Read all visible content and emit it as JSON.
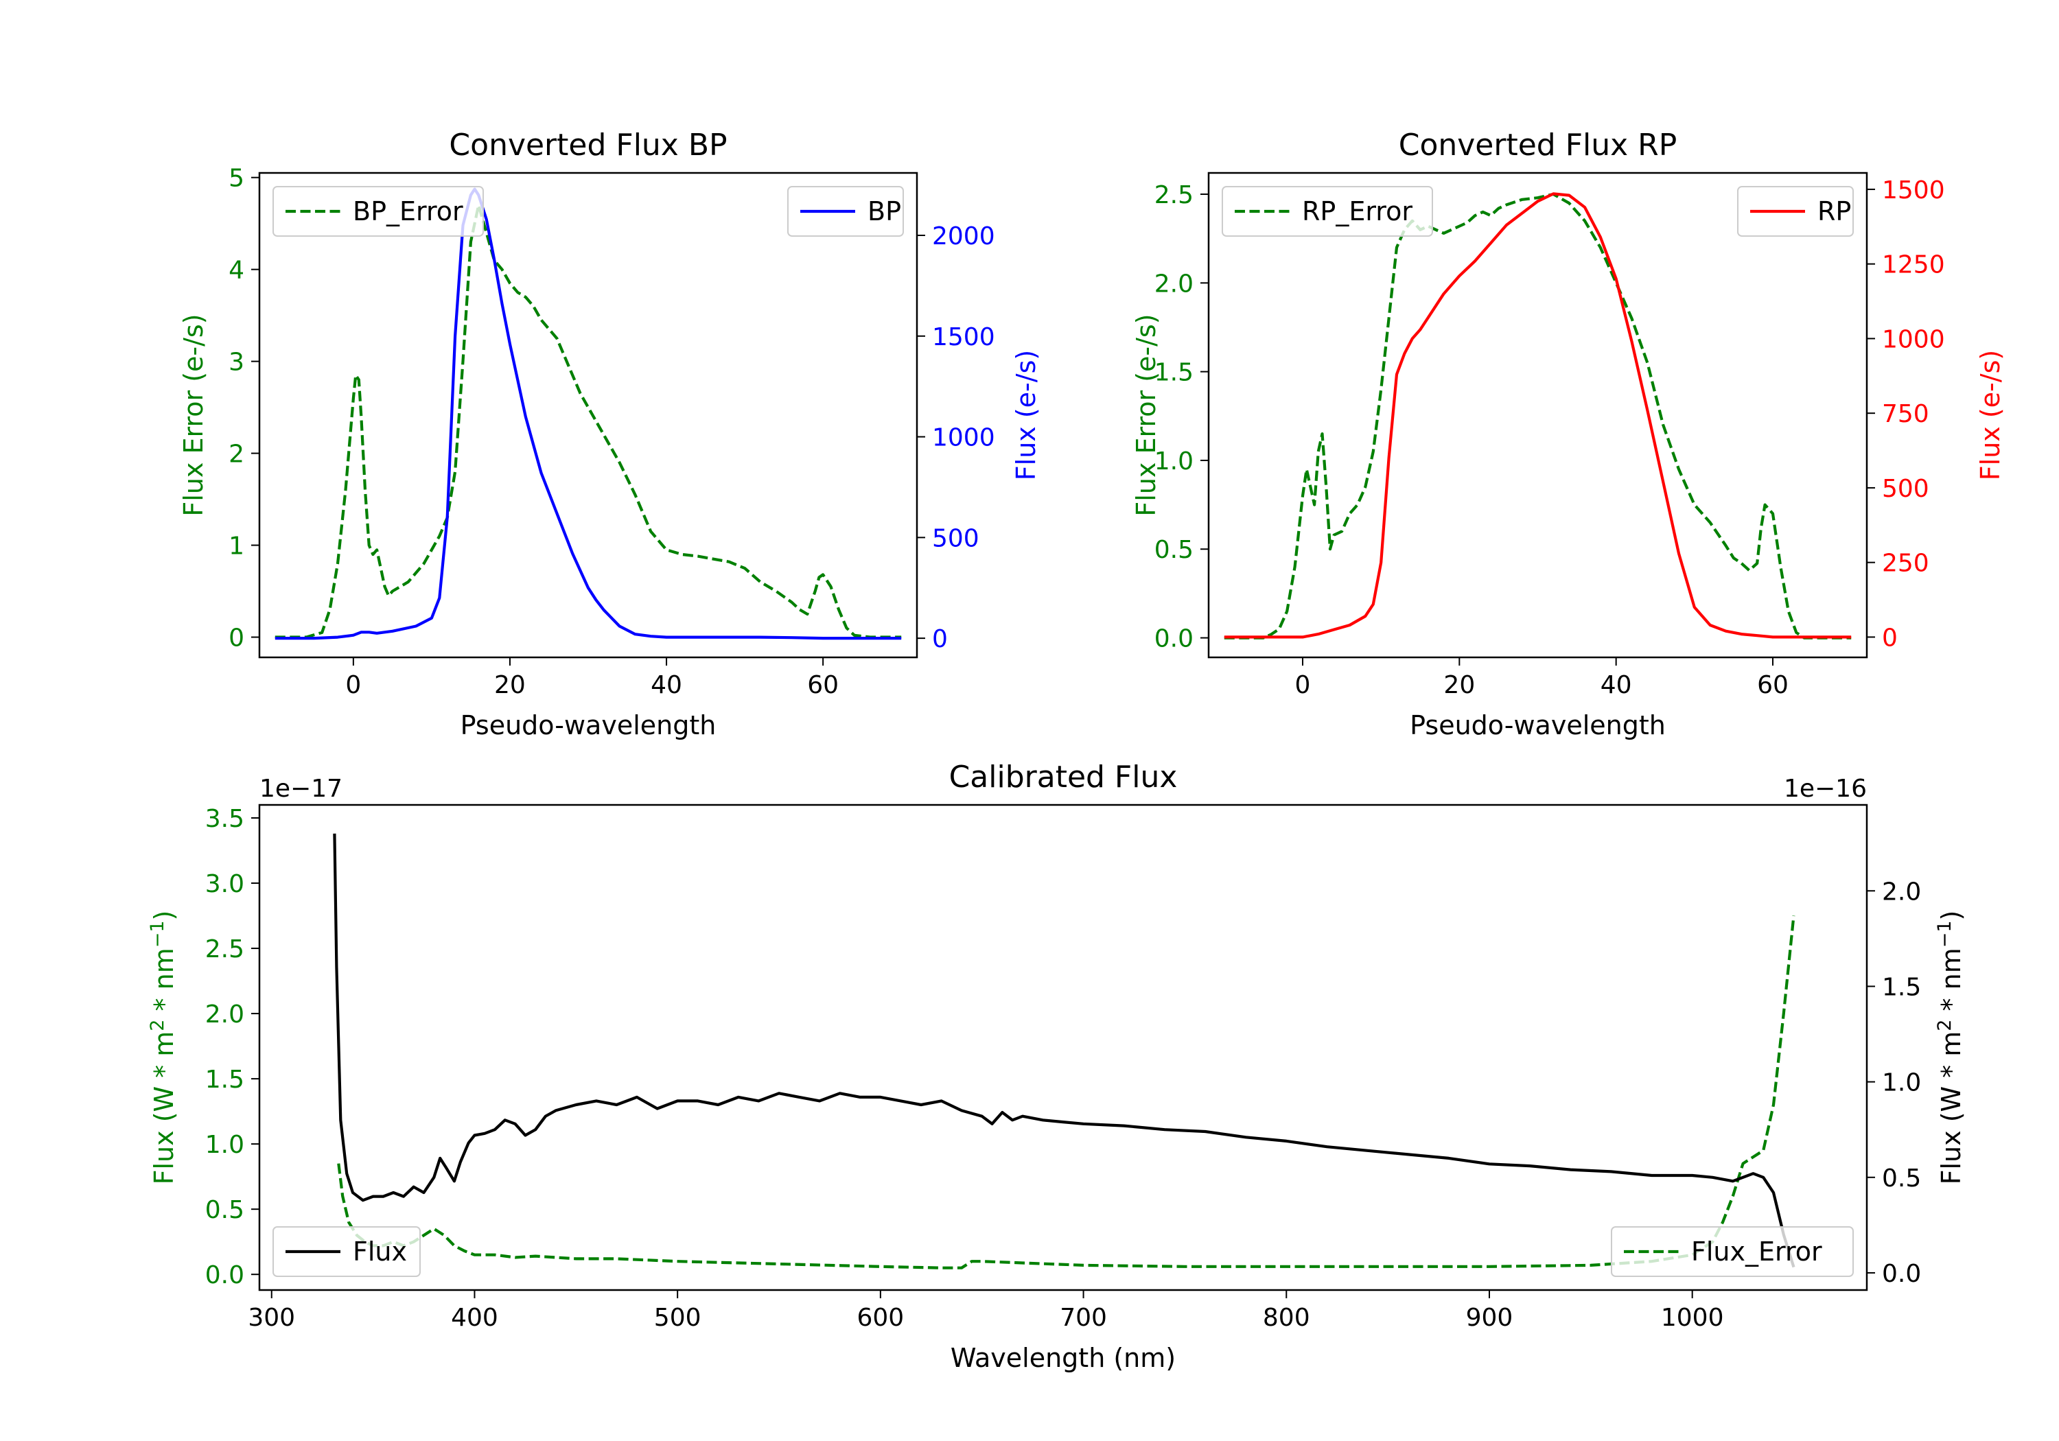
{
  "chart_data": [
    {
      "id": "bp",
      "type": "line",
      "title": "Converted Flux BP",
      "xlabel": "Pseudo-wavelength",
      "xlim": [
        -12,
        72
      ],
      "xticks": [
        0,
        20,
        40,
        60
      ],
      "left_axis": {
        "label": "Flux Error (e-/s)",
        "color": "#008000",
        "ylim": [
          -0.22,
          5.05
        ],
        "ticks": [
          0,
          1,
          2,
          3,
          4,
          5
        ],
        "tick_labels": [
          "0",
          "1",
          "2",
          "3",
          "4",
          "5"
        ]
      },
      "right_axis": {
        "label": "Flux (e-/s)",
        "color": "#0000ff",
        "ylim": [
          -95,
          2310
        ],
        "ticks": [
          0,
          500,
          1000,
          1500,
          2000
        ],
        "tick_labels": [
          "0",
          "500",
          "1000",
          "1500",
          "2000"
        ]
      },
      "series": [
        {
          "name": "BP_Error",
          "axis": "left",
          "style": "dashed",
          "color": "#008000",
          "x": [
            -10,
            -6,
            -4,
            -3,
            -2,
            -1,
            0,
            0.3,
            0.7,
            1,
            1.5,
            2,
            2.5,
            3,
            3.5,
            4,
            4.5,
            5,
            6,
            7,
            8,
            9,
            10,
            11,
            12,
            13,
            14,
            15,
            16,
            17,
            18,
            19,
            20,
            21,
            22,
            23,
            24,
            25,
            26,
            27,
            28,
            29,
            30,
            32,
            34,
            36,
            38,
            40,
            42,
            44,
            46,
            48,
            50,
            52,
            54,
            56,
            57,
            58,
            59,
            59.5,
            60,
            61,
            62,
            63,
            64,
            66,
            70
          ],
          "y": [
            0,
            0,
            0.05,
            0.3,
            0.8,
            1.6,
            2.6,
            2.85,
            2.8,
            2.4,
            1.6,
            1.0,
            0.9,
            0.95,
            0.75,
            0.55,
            0.45,
            0.5,
            0.55,
            0.6,
            0.7,
            0.8,
            0.95,
            1.1,
            1.3,
            1.8,
            3.0,
            4.3,
            4.7,
            4.4,
            4.1,
            4.0,
            3.85,
            3.75,
            3.7,
            3.6,
            3.45,
            3.35,
            3.25,
            3.05,
            2.85,
            2.65,
            2.5,
            2.2,
            1.9,
            1.55,
            1.15,
            0.95,
            0.9,
            0.88,
            0.85,
            0.82,
            0.75,
            0.6,
            0.5,
            0.38,
            0.3,
            0.25,
            0.5,
            0.65,
            0.68,
            0.55,
            0.3,
            0.1,
            0.02,
            0,
            0
          ]
        },
        {
          "name": "BP",
          "axis": "right",
          "style": "solid",
          "color": "#0000ff",
          "x": [
            -10,
            -5,
            -2,
            0,
            1,
            2,
            3,
            5,
            8,
            10,
            11,
            12,
            13,
            14,
            15,
            15.5,
            16,
            17,
            18,
            19,
            20,
            22,
            24,
            26,
            28,
            30,
            31,
            32,
            34,
            36,
            38,
            40,
            44,
            48,
            52,
            56,
            60,
            64,
            70
          ],
          "y": [
            0,
            0,
            5,
            15,
            30,
            30,
            25,
            35,
            60,
            100,
            200,
            600,
            1500,
            2050,
            2200,
            2230,
            2200,
            2080,
            1880,
            1660,
            1460,
            1100,
            820,
            620,
            420,
            250,
            190,
            140,
            60,
            20,
            10,
            5,
            5,
            5,
            5,
            3,
            0,
            0,
            0
          ]
        }
      ],
      "legend": [
        {
          "label": "BP_Error",
          "position": "upper-left"
        },
        {
          "label": "BP",
          "position": "upper-right"
        }
      ]
    },
    {
      "id": "rp",
      "type": "line",
      "title": "Converted Flux RP",
      "xlabel": "Pseudo-wavelength",
      "xlim": [
        -12,
        72
      ],
      "xticks": [
        0,
        20,
        40,
        60
      ],
      "left_axis": {
        "label": "Flux Error (e-/s)",
        "color": "#008000",
        "ylim": [
          -0.11,
          2.62
        ],
        "ticks": [
          0,
          0.5,
          1.0,
          1.5,
          2.0,
          2.5
        ],
        "tick_labels": [
          "0.0",
          "0.5",
          "1.0",
          "1.5",
          "2.0",
          "2.5"
        ]
      },
      "right_axis": {
        "label": "Flux (e-/s)",
        "color": "#ff0000",
        "ylim": [
          -68,
          1555
        ],
        "ticks": [
          0,
          250,
          500,
          750,
          1000,
          1250,
          1500
        ],
        "tick_labels": [
          "0",
          "250",
          "500",
          "750",
          "1000",
          "1250",
          "1500"
        ]
      },
      "series": [
        {
          "name": "RP_Error",
          "axis": "left",
          "style": "dashed",
          "color": "#008000",
          "x": [
            -10,
            -5,
            -4,
            -3,
            -2,
            -1,
            0,
            0.5,
            1,
            1.5,
            2,
            2.5,
            3,
            3.5,
            4,
            5,
            6,
            7,
            8,
            9,
            10,
            11,
            12,
            13,
            14,
            15,
            16,
            17,
            18,
            19,
            20,
            21,
            22,
            23,
            24,
            25,
            26,
            28,
            30,
            32,
            34,
            36,
            38,
            40,
            42,
            44,
            46,
            48,
            50,
            52,
            54,
            55,
            56,
            57,
            58,
            58.5,
            59,
            60,
            61,
            62,
            63,
            64,
            65,
            70
          ],
          "y": [
            0,
            0,
            0.02,
            0.05,
            0.15,
            0.4,
            0.8,
            0.95,
            0.85,
            0.75,
            1.05,
            1.15,
            0.85,
            0.5,
            0.58,
            0.6,
            0.7,
            0.75,
            0.85,
            1.05,
            1.4,
            1.8,
            2.2,
            2.3,
            2.35,
            2.3,
            2.32,
            2.3,
            2.28,
            2.3,
            2.32,
            2.34,
            2.38,
            2.4,
            2.38,
            2.42,
            2.44,
            2.47,
            2.48,
            2.5,
            2.45,
            2.35,
            2.2,
            2.0,
            1.8,
            1.55,
            1.2,
            0.95,
            0.75,
            0.65,
            0.52,
            0.45,
            0.42,
            0.38,
            0.42,
            0.62,
            0.75,
            0.7,
            0.4,
            0.15,
            0.03,
            0,
            0,
            0
          ]
        },
        {
          "name": "RP",
          "axis": "right",
          "style": "solid",
          "color": "#ff0000",
          "x": [
            -10,
            -5,
            0,
            2,
            4,
            6,
            8,
            9,
            10,
            11,
            12,
            13,
            14,
            15,
            16,
            18,
            20,
            22,
            24,
            26,
            28,
            30,
            32,
            34,
            36,
            38,
            40,
            42,
            44,
            46,
            48,
            50,
            52,
            54,
            56,
            58,
            60,
            64,
            70
          ],
          "y": [
            0,
            0,
            0,
            10,
            25,
            40,
            70,
            110,
            250,
            600,
            880,
            950,
            1000,
            1030,
            1070,
            1150,
            1210,
            1260,
            1320,
            1380,
            1420,
            1460,
            1485,
            1480,
            1440,
            1340,
            1200,
            990,
            760,
            520,
            280,
            100,
            40,
            20,
            10,
            5,
            0,
            0,
            0
          ]
        }
      ],
      "legend": [
        {
          "label": "RP_Error",
          "position": "upper-left"
        },
        {
          "label": "RP",
          "position": "upper-right"
        }
      ]
    },
    {
      "id": "cal",
      "type": "line",
      "title": "Calibrated Flux",
      "xlabel": "Wavelength (nm)",
      "xlim": [
        294,
        1086
      ],
      "xticks": [
        300,
        400,
        500,
        600,
        700,
        800,
        900,
        1000
      ],
      "left_axis": {
        "label": "Flux (W * m2 * nm-1)",
        "label_base": "Flux (W * m",
        "label_sup1": "2",
        "label_mid": " * nm",
        "label_sup2": "−1",
        "label_end": ")",
        "color": "#008000",
        "ylim": [
          -0.12,
          3.6
        ],
        "ticks": [
          0,
          0.5,
          1.0,
          1.5,
          2.0,
          2.5,
          3.0,
          3.5
        ],
        "tick_labels": [
          "0.0",
          "0.5",
          "1.0",
          "1.5",
          "2.0",
          "2.5",
          "3.0",
          "3.5"
        ],
        "offset_text": "1e−17"
      },
      "right_axis": {
        "label": "Flux (W * m2 * nm-1)",
        "label_base": "Flux (W * m",
        "label_sup1": "2",
        "label_mid": " * nm",
        "label_sup2": "−1",
        "label_end": ")",
        "color": "#000000",
        "ylim": [
          -0.09,
          2.45
        ],
        "ticks": [
          0,
          0.5,
          1.0,
          1.5,
          2.0
        ],
        "tick_labels": [
          "0.0",
          "0.5",
          "1.0",
          "1.5",
          "2.0"
        ],
        "offset_text": "1e−16"
      },
      "series": [
        {
          "name": "Flux_Error",
          "axis": "left",
          "style": "dashed",
          "color": "#008000",
          "x": [
            333,
            335,
            338,
            342,
            346,
            350,
            355,
            360,
            365,
            370,
            375,
            380,
            385,
            390,
            395,
            400,
            410,
            420,
            430,
            440,
            450,
            470,
            500,
            550,
            600,
            630,
            640,
            645,
            650,
            700,
            750,
            800,
            850,
            900,
            950,
            980,
            1000,
            1010,
            1015,
            1020,
            1025,
            1030,
            1035,
            1040,
            1045,
            1050
          ],
          "y": [
            0.85,
            0.6,
            0.4,
            0.3,
            0.25,
            0.22,
            0.22,
            0.25,
            0.22,
            0.25,
            0.3,
            0.35,
            0.3,
            0.22,
            0.18,
            0.15,
            0.15,
            0.13,
            0.14,
            0.13,
            0.12,
            0.12,
            0.1,
            0.08,
            0.06,
            0.05,
            0.05,
            0.1,
            0.1,
            0.07,
            0.06,
            0.06,
            0.06,
            0.06,
            0.07,
            0.1,
            0.15,
            0.25,
            0.4,
            0.6,
            0.85,
            0.9,
            0.95,
            1.3,
            2.0,
            2.75
          ]
        },
        {
          "name": "Flux",
          "axis": "right",
          "style": "solid",
          "color": "#000000",
          "x": [
            331,
            332,
            334,
            337,
            340,
            345,
            350,
            355,
            360,
            365,
            370,
            375,
            380,
            383,
            386,
            390,
            393,
            397,
            400,
            405,
            410,
            415,
            420,
            425,
            430,
            435,
            440,
            450,
            460,
            470,
            480,
            490,
            500,
            510,
            520,
            530,
            540,
            550,
            560,
            570,
            580,
            590,
            600,
            610,
            620,
            630,
            640,
            650,
            655,
            660,
            665,
            670,
            680,
            690,
            700,
            720,
            740,
            760,
            780,
            800,
            820,
            840,
            860,
            880,
            900,
            920,
            940,
            960,
            980,
            1000,
            1010,
            1020,
            1030,
            1035,
            1040,
            1045,
            1050
          ],
          "y": [
            2.3,
            1.6,
            0.8,
            0.52,
            0.42,
            0.38,
            0.4,
            0.4,
            0.42,
            0.4,
            0.45,
            0.42,
            0.5,
            0.6,
            0.55,
            0.48,
            0.58,
            0.68,
            0.72,
            0.73,
            0.75,
            0.8,
            0.78,
            0.72,
            0.75,
            0.82,
            0.85,
            0.88,
            0.9,
            0.88,
            0.92,
            0.86,
            0.9,
            0.9,
            0.88,
            0.92,
            0.9,
            0.94,
            0.92,
            0.9,
            0.94,
            0.92,
            0.92,
            0.9,
            0.88,
            0.9,
            0.85,
            0.82,
            0.78,
            0.84,
            0.8,
            0.82,
            0.8,
            0.79,
            0.78,
            0.77,
            0.75,
            0.74,
            0.71,
            0.69,
            0.66,
            0.64,
            0.62,
            0.6,
            0.57,
            0.56,
            0.54,
            0.53,
            0.51,
            0.51,
            0.5,
            0.48,
            0.52,
            0.5,
            0.42,
            0.2,
            0.03
          ]
        }
      ],
      "legend": [
        {
          "label": "Flux",
          "position": "lower-left"
        },
        {
          "label": "Flux_Error",
          "position": "lower-right"
        }
      ]
    }
  ]
}
